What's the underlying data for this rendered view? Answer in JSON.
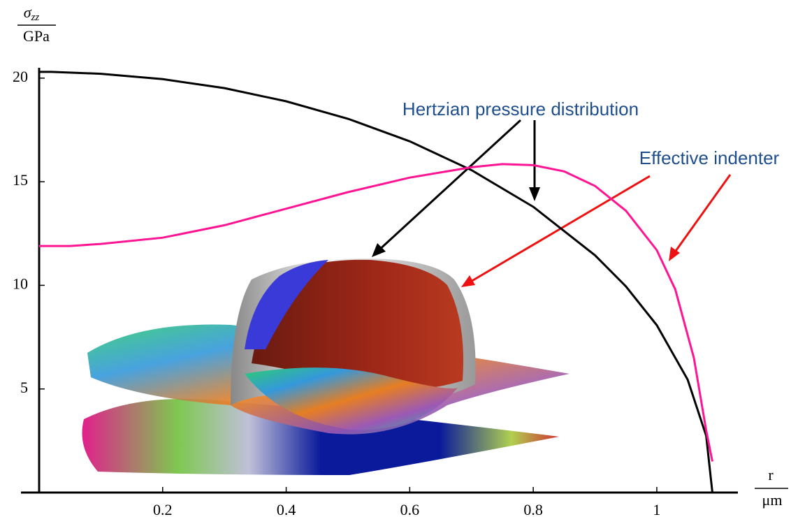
{
  "chart_data": {
    "type": "line",
    "y_label": {
      "symbol": "σ",
      "subscript": "zz",
      "unit": "GPa"
    },
    "x_label": {
      "symbol": "r",
      "unit": "μm"
    },
    "annotations": [
      "Hertzian pressure distribution",
      "Effective indenter"
    ],
    "xlim": [
      0,
      1.12
    ],
    "ylim": [
      0,
      20.5
    ],
    "xticks": [
      0.2,
      0.4,
      0.6,
      0.8,
      1
    ],
    "yticks": [
      5,
      10,
      15,
      20
    ],
    "grid": false,
    "series": [
      {
        "name": "Hertzian pressure distribution",
        "color": "#000000",
        "x": [
          0,
          0.02,
          0.1,
          0.2,
          0.3,
          0.4,
          0.5,
          0.6,
          0.7,
          0.8,
          0.9,
          0.95,
          1.0,
          1.05,
          1.08,
          1.09
        ],
        "values": [
          20.3,
          20.3,
          20.21,
          19.95,
          19.52,
          18.88,
          18.04,
          16.95,
          15.56,
          13.79,
          11.45,
          9.95,
          8.08,
          5.45,
          2.74,
          0
        ]
      },
      {
        "name": "Effective indenter",
        "color": "#ff1493",
        "x": [
          0,
          0.05,
          0.1,
          0.2,
          0.3,
          0.4,
          0.5,
          0.6,
          0.7,
          0.75,
          0.8,
          0.85,
          0.9,
          0.95,
          1.0,
          1.03,
          1.06,
          1.08,
          1.09
        ],
        "values": [
          11.9,
          11.9,
          12.0,
          12.3,
          12.9,
          13.7,
          14.5,
          15.2,
          15.7,
          15.85,
          15.8,
          15.5,
          14.8,
          13.6,
          11.7,
          9.8,
          6.5,
          3.0,
          1.5
        ]
      }
    ]
  }
}
